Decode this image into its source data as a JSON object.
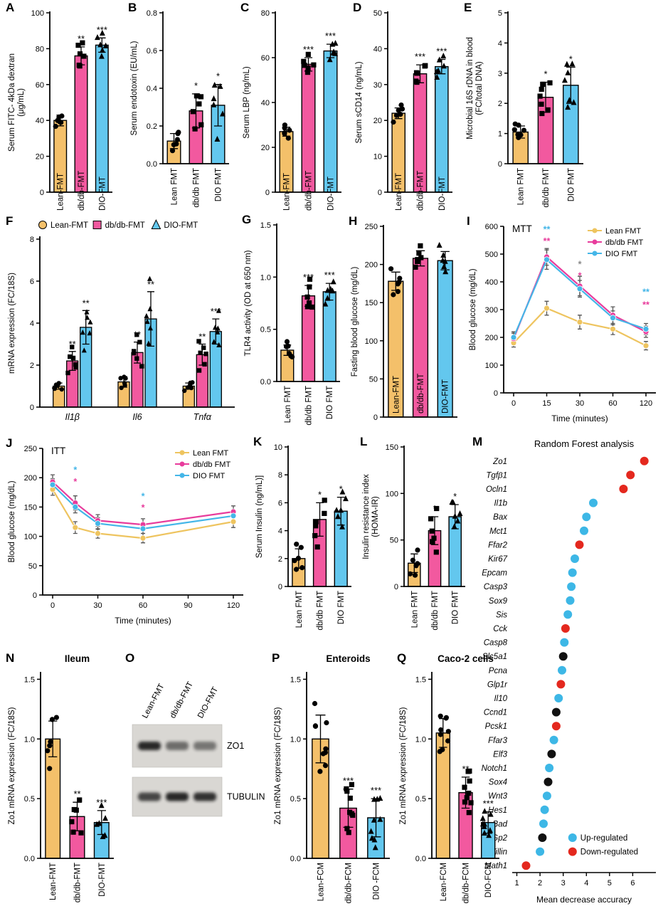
{
  "colors": {
    "orange": "#F4C06A",
    "pink": "#F2599F",
    "blue": "#63C7EE",
    "line_lean": "#EEC45F",
    "line_db": "#E83C9C",
    "line_dio": "#44B6E8",
    "up": "#3DB7E6",
    "down": "#E4281E",
    "black": "#111111"
  },
  "chart_data": [
    {
      "id": "A",
      "letter": "A",
      "type": "bar",
      "ylabel": "Serum FITC- 4kDa dextran\n(μg/mL)",
      "ylim": [
        0,
        100
      ],
      "yticks": [
        0,
        20,
        40,
        60,
        80,
        100
      ],
      "ydec": 0,
      "categories": [
        "Lean-FMT",
        "db/db-FMT",
        "DIO-FMT"
      ],
      "values": [
        40,
        76,
        82
      ],
      "errors": [
        3,
        5,
        4
      ],
      "sig": [
        "",
        "**",
        "***"
      ],
      "label_mode": "cross"
    },
    {
      "id": "B",
      "letter": "B",
      "type": "bar",
      "ylabel": "Serum endotoxin (EU/mL)",
      "ylim": [
        0,
        0.8
      ],
      "yticks": [
        0,
        0.2,
        0.4,
        0.6,
        0.8
      ],
      "ydec": 1,
      "categories": [
        "Lean FMT",
        "db/db FMT",
        "DIO FMT"
      ],
      "values": [
        0.12,
        0.28,
        0.31
      ],
      "errors": [
        0.04,
        0.09,
        0.11
      ],
      "sig": [
        "",
        "*",
        "*"
      ],
      "label_mode": "below"
    },
    {
      "id": "C",
      "letter": "C",
      "type": "bar",
      "ylabel": "Serum LBP (ng/mL)",
      "ylim": [
        0,
        80
      ],
      "yticks": [
        0,
        20,
        40,
        60,
        80
      ],
      "ydec": 0,
      "categories": [
        "Lean-FMT",
        "db/db-FMT",
        "DIO-FMT"
      ],
      "values": [
        27,
        57,
        63
      ],
      "errors": [
        2,
        3,
        3
      ],
      "sig": [
        "",
        "***",
        "***"
      ],
      "label_mode": "cross"
    },
    {
      "id": "D",
      "letter": "D",
      "type": "bar",
      "ylabel": "Serum sCD14 (ng/mL)",
      "ylim": [
        0,
        50
      ],
      "yticks": [
        0,
        10,
        20,
        30,
        40,
        50
      ],
      "ydec": 0,
      "categories": [
        "Lean-FMT",
        "db/db-FMT",
        "DIO-FMT"
      ],
      "values": [
        22,
        33,
        35
      ],
      "errors": [
        1.5,
        2.5,
        2
      ],
      "sig": [
        "",
        "***",
        "***"
      ],
      "label_mode": "cross"
    },
    {
      "id": "E",
      "letter": "E",
      "type": "bar",
      "ylabel": "Microbial 16S rDNA in blood\n(FC/total DNA)",
      "ylim": [
        0,
        5
      ],
      "yticks": [
        0,
        1,
        2,
        3,
        4,
        5
      ],
      "ydec": 0,
      "categories": [
        "Lean FMT",
        "db/db FMT",
        "DIO FMT"
      ],
      "values": [
        1.05,
        2.2,
        2.6
      ],
      "errors": [
        0.2,
        0.5,
        0.6
      ],
      "sig": [
        "",
        "*",
        "*"
      ],
      "label_mode": "below",
      "npoints": 7
    },
    {
      "id": "F",
      "letter": "F",
      "type": "grouped_bar",
      "ylabel": "mRNA expression (FC/18S)",
      "ylim": [
        0,
        8
      ],
      "yticks": [
        0,
        2,
        4,
        6,
        8
      ],
      "ydec": 0,
      "categories": [
        "Il1β",
        "Il6",
        "Tnfα"
      ],
      "series": [
        {
          "name": "Lean-FMT",
          "color": "orange",
          "shape": "circle",
          "values": [
            1.0,
            1.2,
            1.0
          ],
          "errors": [
            0.15,
            0.25,
            0.15
          ],
          "sig": [
            "",
            "",
            ""
          ]
        },
        {
          "name": "db/db-FMT",
          "color": "pink",
          "shape": "square",
          "values": [
            2.2,
            2.6,
            2.5
          ],
          "errors": [
            0.45,
            0.5,
            0.5
          ],
          "sig": [
            "**",
            "**",
            "**"
          ]
        },
        {
          "name": "DIO-FMT",
          "color": "blue",
          "shape": "triangle",
          "values": [
            3.8,
            4.2,
            3.6
          ],
          "errors": [
            0.8,
            1.3,
            0.6
          ],
          "sig": [
            "**",
            "**",
            "***"
          ]
        }
      ]
    },
    {
      "id": "G",
      "letter": "G",
      "type": "bar",
      "ylabel": "TLR4 activity (OD at 650 nm)",
      "ylim": [
        0,
        1.5
      ],
      "yticks": [
        0,
        0.5,
        1,
        1.5
      ],
      "ydec": 1,
      "categories": [
        "Lean FMT",
        "db/db FMT",
        "DIO FMT"
      ],
      "values": [
        0.3,
        0.82,
        0.86
      ],
      "errors": [
        0.05,
        0.1,
        0.08
      ],
      "sig": [
        "",
        "***",
        "***"
      ],
      "label_mode": "below"
    },
    {
      "id": "H",
      "letter": "H",
      "type": "bar",
      "ylabel": "Fasting blood glucose (mg/dL)",
      "ylim": [
        0,
        250
      ],
      "yticks": [
        0,
        50,
        100,
        150,
        200,
        250
      ],
      "ydec": 0,
      "categories": [
        "Lean-FMT",
        "db/db-FMT",
        "DIO-FMT"
      ],
      "values": [
        178,
        208,
        205
      ],
      "errors": [
        12,
        10,
        12
      ],
      "sig": [
        "",
        "",
        ""
      ],
      "label_mode": "inside"
    },
    {
      "id": "I",
      "letter": "I",
      "type": "line",
      "title": "MTT",
      "ylabel": "Blood glucose (mg/dL)",
      "xlabel": "Time (minutes)",
      "ylim": [
        0,
        600
      ],
      "yticks": [
        0,
        100,
        200,
        300,
        400,
        500,
        600
      ],
      "x": [
        0,
        15,
        30,
        60,
        120
      ],
      "x_mode": "even",
      "series": [
        {
          "name": "Lean FMT",
          "color": "line_lean",
          "values": [
            180,
            305,
            255,
            230,
            170
          ],
          "errors": [
            15,
            25,
            25,
            20,
            15
          ]
        },
        {
          "name": "db/db FMT",
          "color": "line_db",
          "values": [
            195,
            490,
            385,
            280,
            220
          ],
          "errors": [
            20,
            30,
            35,
            30,
            20
          ]
        },
        {
          "name": "DIO FMT",
          "color": "line_dio",
          "values": [
            200,
            480,
            375,
            270,
            230
          ],
          "errors": [
            20,
            35,
            30,
            25,
            20
          ]
        }
      ],
      "annotations": [
        {
          "xi": 1,
          "y": 578,
          "text": "**",
          "color": "line_dio"
        },
        {
          "xi": 1,
          "y": 536,
          "text": "**",
          "color": "line_db"
        },
        {
          "xi": 2,
          "y": 452,
          "text": "*",
          "color": "#8a8a8a"
        },
        {
          "xi": 2,
          "y": 412,
          "text": "*",
          "color": "line_db"
        },
        {
          "xi": 4,
          "y": 352,
          "text": "**",
          "color": "line_dio"
        },
        {
          "xi": 4,
          "y": 306,
          "text": "**",
          "color": "line_db"
        }
      ]
    },
    {
      "id": "J",
      "letter": "J",
      "type": "line",
      "title": "ITT",
      "ylabel": "Blood glucose (mg/dL)",
      "xlabel": "Time (minutes)",
      "ylim": [
        0,
        250
      ],
      "yticks": [
        0,
        50,
        100,
        150,
        200,
        250
      ],
      "x": [
        0,
        15,
        30,
        60,
        120
      ],
      "x_mode": "linear",
      "xlim": [
        0,
        120
      ],
      "xticks": [
        0,
        30,
        60,
        90,
        120
      ],
      "series": [
        {
          "name": "Lean FMT",
          "color": "line_lean",
          "values": [
            180,
            115,
            105,
            97,
            125
          ],
          "errors": [
            10,
            10,
            8,
            8,
            10
          ]
        },
        {
          "name": "db/db FMT",
          "color": "line_db",
          "values": [
            193,
            157,
            127,
            120,
            142
          ],
          "errors": [
            12,
            12,
            10,
            10,
            10
          ]
        },
        {
          "name": "DIO FMT",
          "color": "line_dio",
          "values": [
            188,
            150,
            122,
            113,
            135
          ],
          "errors": [
            10,
            10,
            10,
            8,
            10
          ]
        }
      ],
      "annotations": [
        {
          "xi": 1,
          "y": 208,
          "text": "*",
          "color": "line_dio"
        },
        {
          "xi": 1,
          "y": 188,
          "text": "*",
          "color": "line_db"
        },
        {
          "xi": 3,
          "y": 163,
          "text": "*",
          "color": "line_dio"
        },
        {
          "xi": 3,
          "y": 144,
          "text": "*",
          "color": "line_db"
        }
      ]
    },
    {
      "id": "K",
      "letter": "K",
      "type": "bar",
      "ylabel": "Serum Insulin (ng/mL)]",
      "ylim": [
        0,
        10
      ],
      "yticks": [
        0,
        2,
        4,
        6,
        8,
        10
      ],
      "ydec": 0,
      "categories": [
        "Lean FMT",
        "db/db FMT",
        "DIO FMT"
      ],
      "values": [
        2,
        4.8,
        5.4
      ],
      "errors": [
        0.7,
        1.2,
        1.0
      ],
      "sig": [
        "",
        "*",
        "*"
      ],
      "label_mode": "below"
    },
    {
      "id": "L",
      "letter": "L",
      "type": "bar",
      "ylabel": "Insulin resistance index\n(HOMA-IR)",
      "ylim": [
        0,
        150
      ],
      "yticks": [
        0,
        50,
        100,
        150
      ],
      "ydec": 0,
      "categories": [
        "Lean FMT",
        "db/db FMT",
        "DIO FMT"
      ],
      "values": [
        25,
        60,
        75
      ],
      "errors": [
        10,
        15,
        13
      ],
      "sig": [
        "",
        "*",
        "*"
      ],
      "label_mode": "below"
    },
    {
      "id": "M",
      "letter": "M",
      "type": "dotplot",
      "title": "Random Forest analysis",
      "xlabel": "Mean decrease accuracy",
      "xlim": [
        0.8,
        7.0
      ],
      "xticks": [
        1,
        2,
        3,
        4,
        5,
        6
      ],
      "legend": [
        {
          "label": "Up-regulated",
          "color": "up"
        },
        {
          "label": "Down-regulated",
          "color": "down"
        }
      ],
      "genes": [
        {
          "name": "Zo1",
          "value": 6.5,
          "color": "down"
        },
        {
          "name": "Tgfβ1",
          "value": 5.9,
          "color": "down"
        },
        {
          "name": "Ocln1",
          "value": 5.6,
          "color": "down"
        },
        {
          "name": "Il1b",
          "value": 4.3,
          "color": "up"
        },
        {
          "name": "Bax",
          "value": 4.0,
          "color": "up"
        },
        {
          "name": "Mct1",
          "value": 3.9,
          "color": "up"
        },
        {
          "name": "Ffar2",
          "value": 3.7,
          "color": "down"
        },
        {
          "name": "Kir67",
          "value": 3.5,
          "color": "up"
        },
        {
          "name": "Epcam",
          "value": 3.4,
          "color": "up"
        },
        {
          "name": "Casp3",
          "value": 3.35,
          "color": "up"
        },
        {
          "name": "Sox9",
          "value": 3.3,
          "color": "up"
        },
        {
          "name": "Sis",
          "value": 3.2,
          "color": "up"
        },
        {
          "name": "Cck",
          "value": 3.1,
          "color": "down"
        },
        {
          "name": "Casp8",
          "value": 3.05,
          "color": "up"
        },
        {
          "name": "Slc5a1",
          "value": 3.0,
          "color": "black"
        },
        {
          "name": "Pcna",
          "value": 2.95,
          "color": "up"
        },
        {
          "name": "Glp1r",
          "value": 2.9,
          "color": "down"
        },
        {
          "name": "Il10",
          "value": 2.8,
          "color": "up"
        },
        {
          "name": "Ccnd1",
          "value": 2.7,
          "color": "black"
        },
        {
          "name": "Pcsk1",
          "value": 2.7,
          "color": "down"
        },
        {
          "name": "Ffar3",
          "value": 2.6,
          "color": "up"
        },
        {
          "name": "Elf3",
          "value": 2.5,
          "color": "black"
        },
        {
          "name": "Notch1",
          "value": 2.4,
          "color": "up"
        },
        {
          "name": "Sox4",
          "value": 2.35,
          "color": "black"
        },
        {
          "name": "Wnt3",
          "value": 2.3,
          "color": "up"
        },
        {
          "name": "Hes1",
          "value": 2.2,
          "color": "up"
        },
        {
          "name": "Bad",
          "value": 2.15,
          "color": "up"
        },
        {
          "name": "Gp2",
          "value": 2.1,
          "color": "black"
        },
        {
          "name": "Villin",
          "value": 2.0,
          "color": "up"
        },
        {
          "name": "Math1",
          "value": 1.4,
          "color": "down"
        }
      ]
    },
    {
      "id": "N",
      "letter": "N",
      "type": "bar",
      "title": "Ileum",
      "ylabel": "Zo1 mRNA expression (FC/18S)",
      "ylim": [
        0,
        1.55
      ],
      "yticks": [
        0,
        0.5,
        1,
        1.5
      ],
      "ydec": 1,
      "categories": [
        "Lean-FMT",
        "db/db-FMT",
        "DIO-FMT"
      ],
      "values": [
        1.0,
        0.35,
        0.3
      ],
      "errors": [
        0.15,
        0.12,
        0.1
      ],
      "sig": [
        "",
        "**",
        "***"
      ],
      "label_mode": "below"
    },
    {
      "id": "O",
      "letter": "O",
      "type": "blot",
      "lanes": [
        "Lean-FMT",
        "db/db-FMT",
        "DIO-FMT"
      ],
      "bands": [
        {
          "label": "ZO1",
          "intensities": [
            0.9,
            0.55,
            0.5
          ]
        },
        {
          "label": "TUBULIN",
          "intensities": [
            0.75,
            0.9,
            0.85
          ]
        }
      ]
    },
    {
      "id": "P",
      "letter": "P",
      "type": "bar",
      "title": "Enteroids",
      "ylabel": "Zo1 mRNA expression (FC/18S)",
      "ylim": [
        0,
        1.55
      ],
      "yticks": [
        0,
        0.5,
        1,
        1.5
      ],
      "ydec": 1,
      "categories": [
        "Lean-FCM",
        "db/db-FCM",
        "DIO -FCM"
      ],
      "values": [
        1.0,
        0.42,
        0.34
      ],
      "errors": [
        0.2,
        0.16,
        0.16
      ],
      "sig": [
        "",
        "***",
        "***"
      ],
      "label_mode": "below",
      "npoints": 9
    },
    {
      "id": "Q",
      "letter": "Q",
      "type": "bar",
      "title": "Caco-2 cells",
      "ylabel": "Zo1 mRNA expression (FC/18S)",
      "ylim": [
        0,
        1.55
      ],
      "yticks": [
        0,
        0.5,
        1,
        1.5
      ],
      "ydec": 1,
      "categories": [
        "Lean-FCM",
        "db/db-FCM",
        "DIO-FCM"
      ],
      "values": [
        1.05,
        0.55,
        0.3
      ],
      "errors": [
        0.12,
        0.13,
        0.09
      ],
      "sig": [
        "",
        "**",
        "***"
      ],
      "label_mode": "below",
      "npoints": 9
    }
  ]
}
